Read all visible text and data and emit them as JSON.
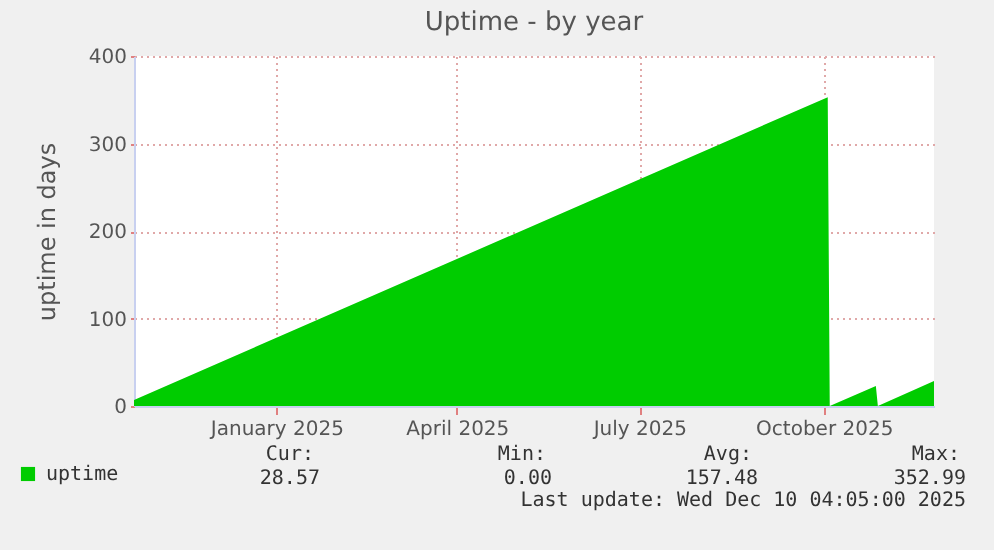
{
  "chart_data": {
    "type": "area",
    "title": "Uptime - by year",
    "ylabel": "uptime in days",
    "x": [
      "2024-11-06",
      "2025-10-18",
      "2025-10-19",
      "2025-11-11",
      "2025-11-12",
      "2025-12-10"
    ],
    "series": [
      {
        "name": "uptime",
        "color": "#00cc00",
        "values": [
          7,
          352.99,
          0,
          23,
          0,
          28.57
        ]
      }
    ],
    "xlim": [
      "2024-11-06",
      "2025-12-10"
    ],
    "xticks": [
      {
        "value": "2025-01-16",
        "label": "January 2025"
      },
      {
        "value": "2025-04-16",
        "label": "April 2025"
      },
      {
        "value": "2025-07-16",
        "label": "July 2025"
      },
      {
        "value": "2025-10-16",
        "label": "October 2025"
      }
    ],
    "ylim": [
      0,
      400
    ],
    "yticks": [
      0,
      100,
      200,
      300,
      400
    ],
    "grid": true,
    "legend": "bottom left",
    "annotations": [
      "Cur:",
      "Min:",
      "Avg:",
      "Max:",
      "28.57",
      "0.00",
      "157.48",
      "352.99",
      "Last update: Wed Dec 10 04:05:00 2025"
    ]
  }
}
